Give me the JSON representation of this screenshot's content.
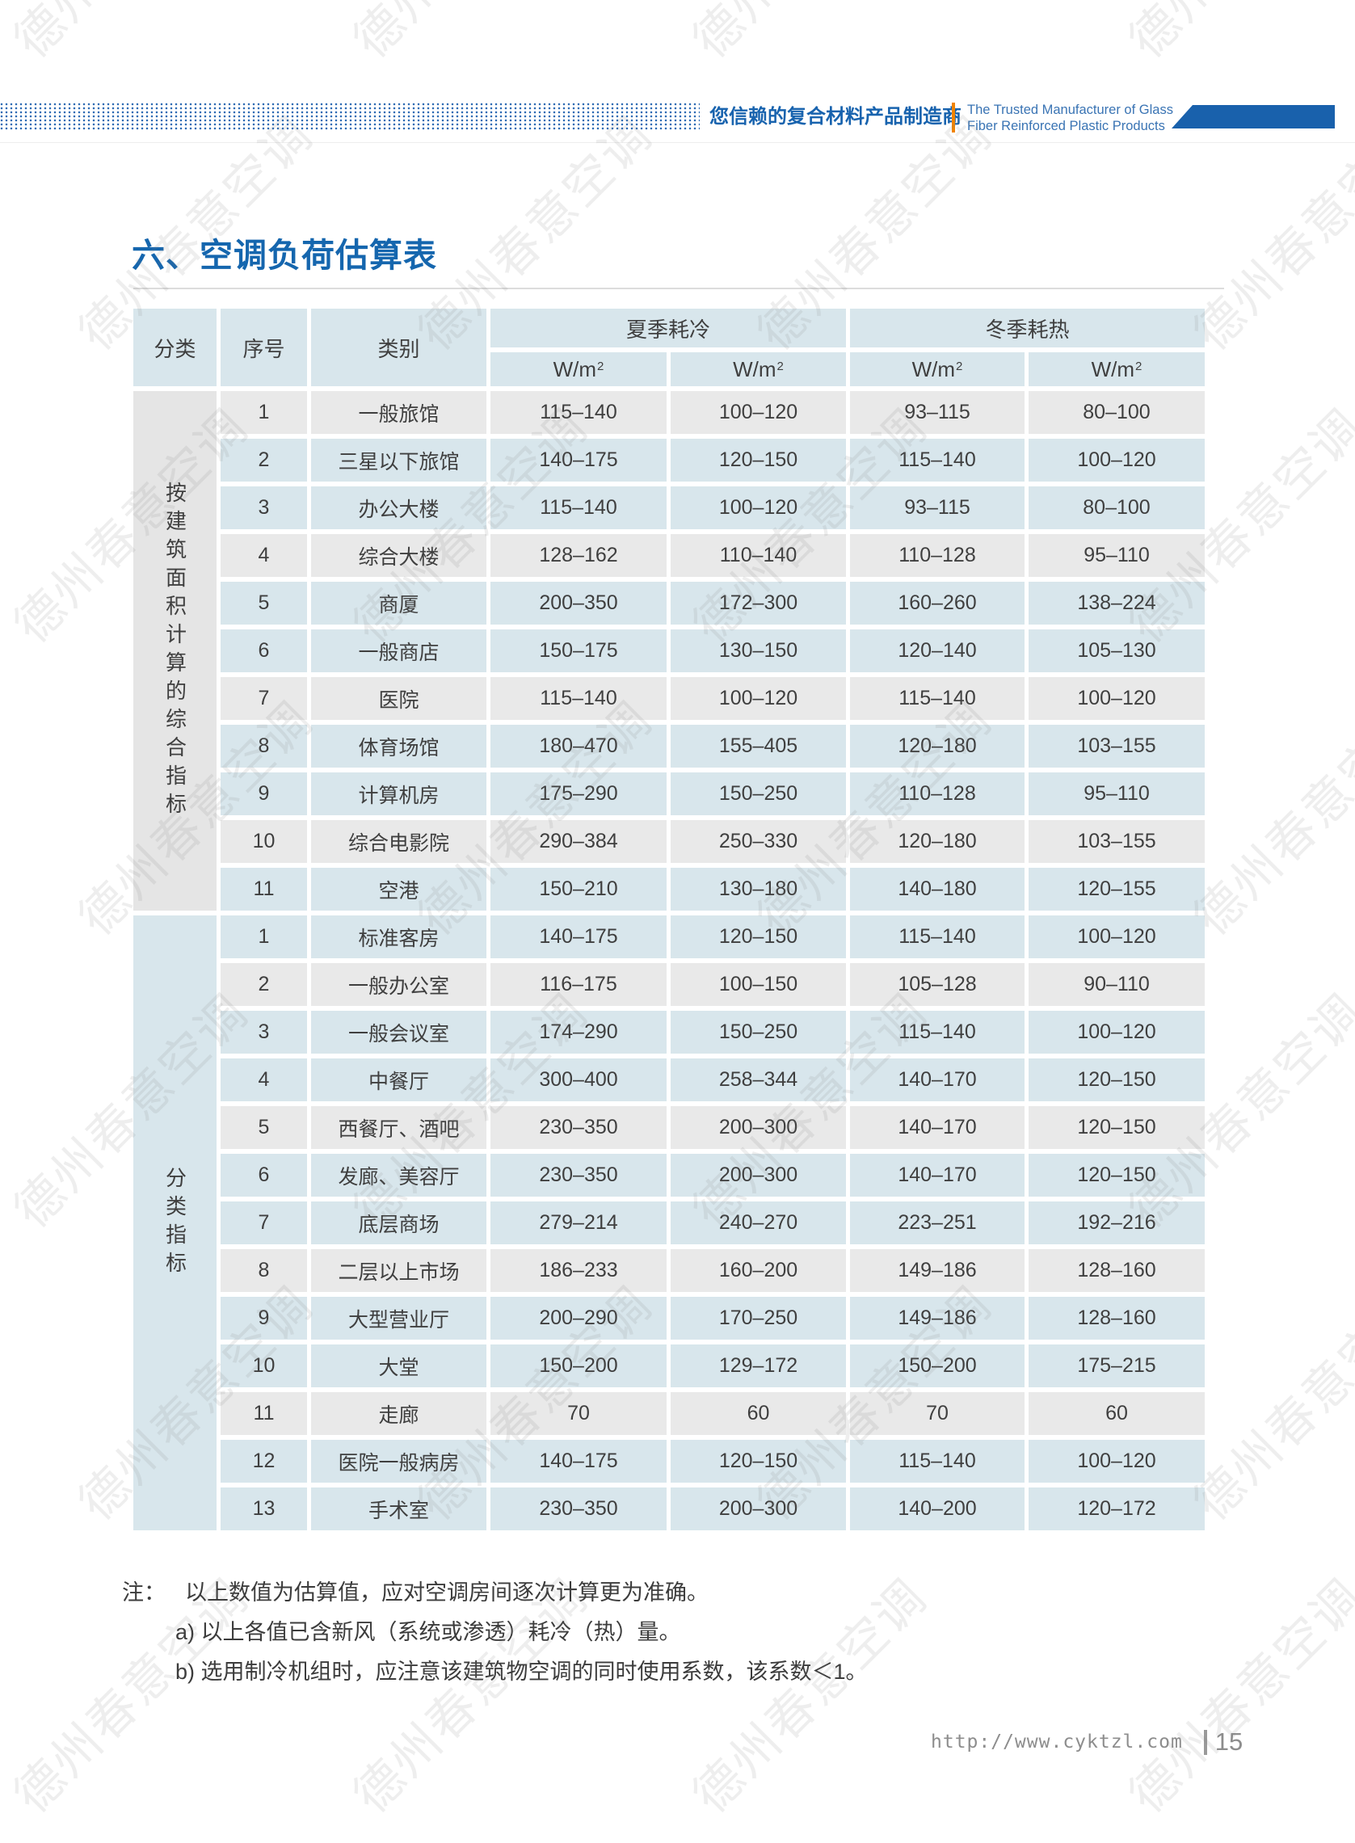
{
  "header": {
    "slogan_cn": "您信赖的复合材料产品制造商",
    "slogan_en_line1": "The Trusted Manufacturer of Glass",
    "slogan_en_line2": "Fiber Reinforced Plastic Products",
    "accent_blue": "#1961ac",
    "accent_orange": "#f08300"
  },
  "title": "六、空调负荷估算表",
  "table": {
    "columns": {
      "category": "分类",
      "no": "序号",
      "type": "类别",
      "summer_group": "夏季耗冷",
      "winter_group": "冬季耗热"
    },
    "unit_label": "W/m",
    "unit_sup": "2",
    "cell_blue": "#d8e6ec",
    "cell_gray": "#e9e9e9",
    "sections": [
      {
        "category": "按建筑面积计算的综合指标",
        "rows": [
          {
            "no": "1",
            "type": "一般旅馆",
            "values": [
              "115–140",
              "100–120",
              "93–115",
              "80–100"
            ]
          },
          {
            "no": "2",
            "type": "三星以下旅馆",
            "values": [
              "140–175",
              "120–150",
              "115–140",
              "100–120"
            ]
          },
          {
            "no": "3",
            "type": "办公大楼",
            "values": [
              "115–140",
              "100–120",
              "93–115",
              "80–100"
            ]
          },
          {
            "no": "4",
            "type": "综合大楼",
            "values": [
              "128–162",
              "110–140",
              "110–128",
              "95–110"
            ]
          },
          {
            "no": "5",
            "type": "商厦",
            "values": [
              "200–350",
              "172–300",
              "160–260",
              "138–224"
            ]
          },
          {
            "no": "6",
            "type": "一般商店",
            "values": [
              "150–175",
              "130–150",
              "120–140",
              "105–130"
            ]
          },
          {
            "no": "7",
            "type": "医院",
            "values": [
              "115–140",
              "100–120",
              "115–140",
              "100–120"
            ]
          },
          {
            "no": "8",
            "type": "体育场馆",
            "values": [
              "180–470",
              "155–405",
              "120–180",
              "103–155"
            ]
          },
          {
            "no": "9",
            "type": "计算机房",
            "values": [
              "175–290",
              "150–250",
              "110–128",
              "95–110"
            ]
          },
          {
            "no": "10",
            "type": "综合电影院",
            "values": [
              "290–384",
              "250–330",
              "120–180",
              "103–155"
            ]
          },
          {
            "no": "11",
            "type": "空港",
            "values": [
              "150–210",
              "130–180",
              "140–180",
              "120–155"
            ]
          }
        ]
      },
      {
        "category": "分类指标",
        "rows": [
          {
            "no": "1",
            "type": "标准客房",
            "values": [
              "140–175",
              "120–150",
              "115–140",
              "100–120"
            ]
          },
          {
            "no": "2",
            "type": "一般办公室",
            "values": [
              "116–175",
              "100–150",
              "105–128",
              "90–110"
            ]
          },
          {
            "no": "3",
            "type": "一般会议室",
            "values": [
              "174–290",
              "150–250",
              "115–140",
              "100–120"
            ]
          },
          {
            "no": "4",
            "type": "中餐厅",
            "values": [
              "300–400",
              "258–344",
              "140–170",
              "120–150"
            ]
          },
          {
            "no": "5",
            "type": "西餐厅、酒吧",
            "values": [
              "230–350",
              "200–300",
              "140–170",
              "120–150"
            ]
          },
          {
            "no": "6",
            "type": "发廊、美容厅",
            "values": [
              "230–350",
              "200–300",
              "140–170",
              "120–150"
            ]
          },
          {
            "no": "7",
            "type": "底层商场",
            "values": [
              "279–214",
              "240–270",
              "223–251",
              "192–216"
            ]
          },
          {
            "no": "8",
            "type": "二层以上市场",
            "values": [
              "186–233",
              "160–200",
              "149–186",
              "128–160"
            ]
          },
          {
            "no": "9",
            "type": "大型营业厅",
            "values": [
              "200–290",
              "170–250",
              "149–186",
              "128–160"
            ]
          },
          {
            "no": "10",
            "type": "大堂",
            "values": [
              "150–200",
              "129–172",
              "150–200",
              "175–215"
            ]
          },
          {
            "no": "11",
            "type": "走廊",
            "values": [
              "70",
              "60",
              "70",
              "60"
            ]
          },
          {
            "no": "12",
            "type": "医院一般病房",
            "values": [
              "140–175",
              "120–150",
              "115–140",
              "100–120"
            ]
          },
          {
            "no": "13",
            "type": "手术室",
            "values": [
              "230–350",
              "200–300",
              "140–200",
              "120–172"
            ]
          }
        ]
      }
    ]
  },
  "notes": {
    "label": "注：",
    "line1": "以上数值为估算值，应对空调房间逐次计算更为准确。",
    "line2": "a) 以上各值已含新风（系统或渗透）耗冷（热）量。",
    "line3": "b) 选用制冷机组时，应注意该建筑物空调的同时使用系数，该系数＜1。"
  },
  "footer": {
    "url": "http://www.cyktzl.com",
    "page": "15"
  },
  "watermark": {
    "text": "德州春意空调"
  }
}
